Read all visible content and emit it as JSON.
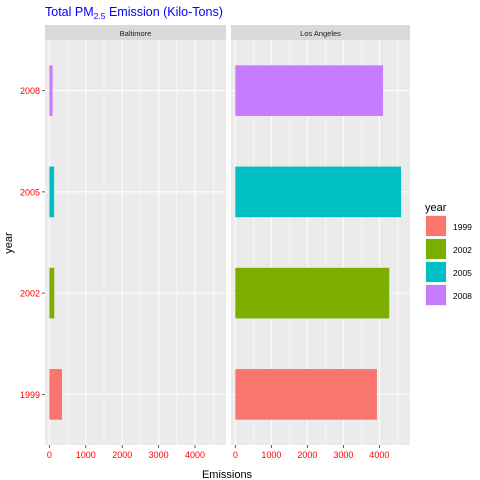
{
  "chart_data": {
    "type": "bar",
    "orientation": "horizontal",
    "facet_by": "city",
    "title_parts": [
      "Total PM",
      "2.5",
      " Emission (Kilo-Tons)"
    ],
    "xlabel": "Emissions",
    "ylabel": "year",
    "xlim": [
      -120,
      4850
    ],
    "xticks": [
      0,
      1000,
      2000,
      3000,
      4000
    ],
    "categories": [
      "1999",
      "2002",
      "2005",
      "2008"
    ],
    "panels": [
      {
        "name": "Baltimore",
        "values": [
          346.82,
          134.31,
          130.43,
          88.28
        ]
      },
      {
        "name": "Los Angeles",
        "values": [
          3931.12,
          4274.03,
          4601.41,
          4101.32
        ]
      }
    ],
    "legend": {
      "title": "year",
      "placement": "right",
      "entries": [
        {
          "label": "1999",
          "color": "#F8766D"
        },
        {
          "label": "2002",
          "color": "#7CAE00"
        },
        {
          "label": "2005",
          "color": "#00BFC4"
        },
        {
          "label": "2008",
          "color": "#C77CFF"
        }
      ]
    },
    "colors": {
      "title": "#0000FF",
      "tick_labels": "#FF0000",
      "panel_bg": "#EBEBEB",
      "strip_bg": "#D9D9D9",
      "grid": "#FFFFFF"
    },
    "grid": true
  }
}
